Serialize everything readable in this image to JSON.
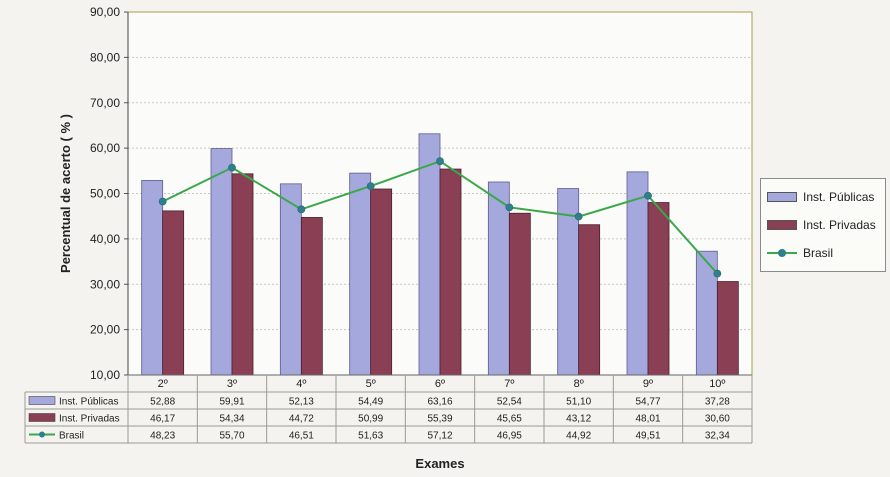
{
  "chart_data": {
    "type": "bar",
    "title": "",
    "xlabel": "Exames",
    "ylabel": "Percentual de acerto ( % )",
    "ylim": [
      10,
      90
    ],
    "yticks": [
      "10,00",
      "20,00",
      "30,00",
      "40,00",
      "50,00",
      "60,00",
      "70,00",
      "80,00",
      "90,00"
    ],
    "categories": [
      "2º",
      "3º",
      "4º",
      "5º",
      "6º",
      "7º",
      "8º",
      "9º",
      "10º"
    ],
    "series": [
      {
        "name": "Inst. Públicas",
        "kind": "bar",
        "color": "#a5a8dc",
        "values": [
          52.88,
          59.91,
          52.13,
          54.49,
          63.16,
          52.54,
          51.1,
          54.77,
          37.28
        ],
        "labels": [
          "52,88",
          "59,91",
          "52,13",
          "54,49",
          "63,16",
          "52,54",
          "51,10",
          "54,77",
          "37,28"
        ]
      },
      {
        "name": "Inst. Privadas",
        "kind": "bar",
        "color": "#8b3f55",
        "values": [
          46.17,
          54.34,
          44.72,
          50.99,
          55.39,
          45.65,
          43.12,
          48.01,
          30.6
        ],
        "labels": [
          "46,17",
          "54,34",
          "44,72",
          "50,99",
          "55,39",
          "45,65",
          "43,12",
          "48,01",
          "30,60"
        ]
      },
      {
        "name": "Brasil",
        "kind": "line",
        "color": "#3aa84a",
        "values": [
          48.23,
          55.7,
          46.51,
          51.63,
          57.12,
          46.95,
          44.92,
          49.51,
          32.34
        ],
        "labels": [
          "48,23",
          "55,70",
          "46,51",
          "51,63",
          "57,12",
          "46,95",
          "44,92",
          "49,51",
          "32,34"
        ]
      }
    ],
    "grid": true,
    "legend": "right",
    "data_table": true
  }
}
